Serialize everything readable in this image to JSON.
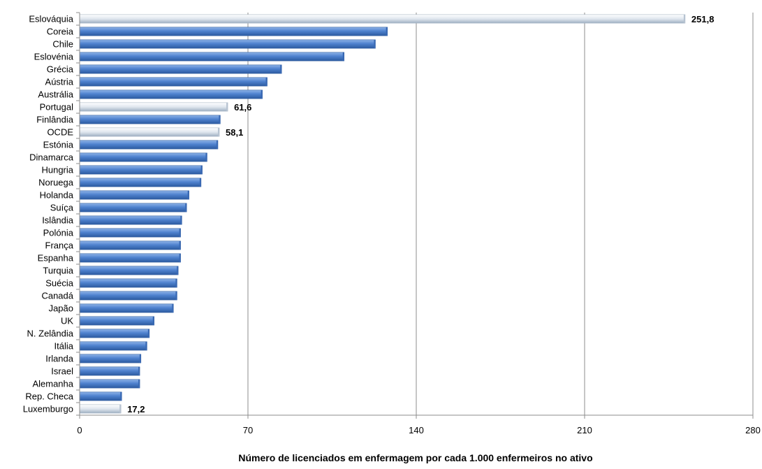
{
  "chart_data": {
    "type": "bar",
    "orientation": "horizontal",
    "title": "",
    "xlabel": "Número de licenciados em enfermagem por cada 1.000 enfermeiros no ativo",
    "ylabel": "",
    "xlim": [
      0,
      280
    ],
    "xticks": [
      "0",
      "70",
      "140",
      "210",
      "280"
    ],
    "grid": "vertical",
    "legend": "none",
    "colors": {
      "default": "#4a7ec8",
      "highlight": "#d2dbe6"
    },
    "categories": [
      "Eslováquia",
      "Coreia",
      "Chile",
      "Eslovénia",
      "Grécia",
      "Aústria",
      "Austrália",
      "Portugal",
      "Finlândia",
      "OCDE",
      "Estónia",
      "Dinamarca",
      "Hungria",
      "Noruega",
      "Holanda",
      "Suíça",
      "Islândia",
      "Polónia",
      "França",
      "Espanha",
      "Turquia",
      "Suécia",
      "Canadá",
      "Japão",
      "UK",
      "N. Zelândia",
      "Itália",
      "Irlanda",
      "Israel",
      "Alemanha",
      "Rep. Checa",
      "Luxemburgo"
    ],
    "values": [
      251.8,
      128,
      123,
      110,
      84,
      78,
      76,
      61.6,
      58.5,
      58.1,
      57.5,
      53,
      51,
      50.5,
      45.5,
      44.5,
      42.5,
      42,
      42,
      42,
      41,
      40.5,
      40.5,
      39,
      31,
      29,
      28,
      25.5,
      25,
      25,
      17.5,
      17.2
    ],
    "highlighted": [
      "Eslováquia",
      "Portugal",
      "OCDE",
      "Luxemburgo"
    ],
    "data_labels": [
      {
        "category": "Eslováquia",
        "text": "251,8"
      },
      {
        "category": "Portugal",
        "text": "61,6"
      },
      {
        "category": "OCDE",
        "text": "58,1"
      },
      {
        "category": "Luxemburgo",
        "text": "17,2"
      }
    ]
  }
}
